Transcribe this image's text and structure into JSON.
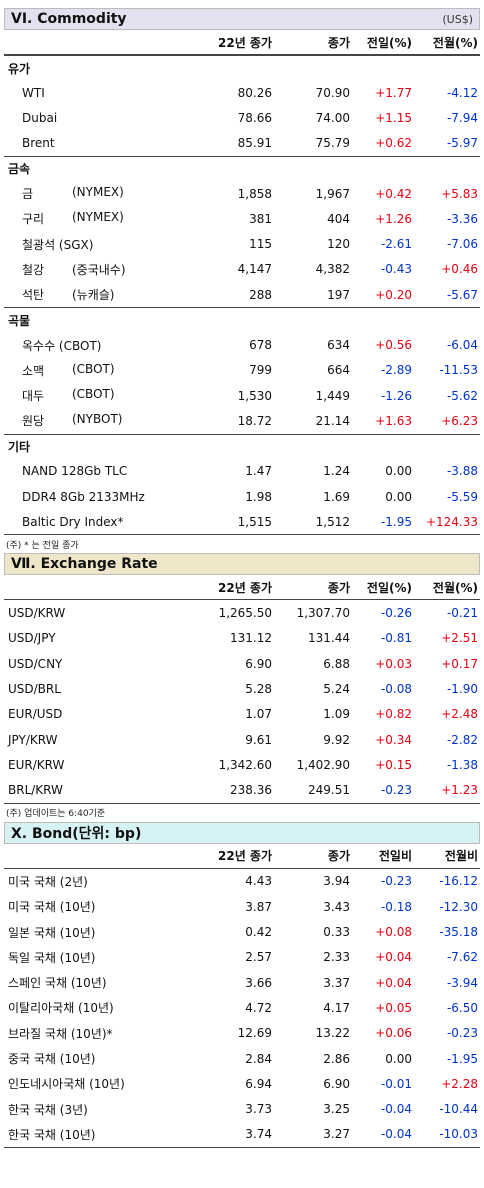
{
  "commodity": {
    "title": "VI. Commodity",
    "unit": "(US$)",
    "columns": [
      "22년 종가",
      "종가",
      "전일(%)",
      "전월(%)"
    ],
    "groups": [
      {
        "label": "유가",
        "rows": [
          {
            "name": "WTI",
            "name2": "",
            "v1": "80.26",
            "v2": "70.90",
            "d1": "+1.77",
            "d2": "-4.12"
          },
          {
            "name": "Dubai",
            "name2": "",
            "v1": "78.66",
            "v2": "74.00",
            "d1": "+1.15",
            "d2": "-7.94"
          },
          {
            "name": "Brent",
            "name2": "",
            "v1": "85.91",
            "v2": "75.79",
            "d1": "+0.62",
            "d2": "-5.97"
          }
        ]
      },
      {
        "label": "금속",
        "rows": [
          {
            "name": "금",
            "name2": "(NYMEX)",
            "v1": "1,858",
            "v2": "1,967",
            "d1": "+0.42",
            "d2": "+5.83"
          },
          {
            "name": "구리",
            "name2": "(NYMEX)",
            "v1": "381",
            "v2": "404",
            "d1": "+1.26",
            "d2": "-3.36"
          },
          {
            "name": "철광석 (SGX)",
            "name2": "",
            "v1": "115",
            "v2": "120",
            "d1": "-2.61",
            "d2": "-7.06"
          },
          {
            "name": "철강",
            "name2": "(중국내수)",
            "v1": "4,147",
            "v2": "4,382",
            "d1": "-0.43",
            "d2": "+0.46"
          },
          {
            "name": "석탄",
            "name2": "(뉴캐슬)",
            "v1": "288",
            "v2": "197",
            "d1": "+0.20",
            "d2": "-5.67"
          }
        ]
      },
      {
        "label": "곡물",
        "rows": [
          {
            "name": "옥수수 (CBOT)",
            "name2": "",
            "v1": "678",
            "v2": "634",
            "d1": "+0.56",
            "d2": "-6.04"
          },
          {
            "name": "소맥",
            "name2": "(CBOT)",
            "v1": "799",
            "v2": "664",
            "d1": "-2.89",
            "d2": "-11.53"
          },
          {
            "name": "대두",
            "name2": "(CBOT)",
            "v1": "1,530",
            "v2": "1,449",
            "d1": "-1.26",
            "d2": "-5.62"
          },
          {
            "name": "원당",
            "name2": "(NYBOT)",
            "v1": "18.72",
            "v2": "21.14",
            "d1": "+1.63",
            "d2": "+6.23"
          }
        ]
      },
      {
        "label": "기타",
        "rows": [
          {
            "name": "NAND 128Gb TLC",
            "name2": "",
            "v1": "1.47",
            "v2": "1.24",
            "d1": "0.00",
            "d2": "-3.88"
          },
          {
            "name": "DDR4 8Gb 2133MHz",
            "name2": "",
            "v1": "1.98",
            "v2": "1.69",
            "d1": "0.00",
            "d2": "-5.59"
          },
          {
            "name": "Baltic Dry Index*",
            "name2": "",
            "v1": "1,515",
            "v2": "1,512",
            "d1": "-1.95",
            "d2": "+124.33"
          }
        ]
      }
    ],
    "note": "(주) * 는 전일 종가"
  },
  "exchange": {
    "title": "Ⅶ. Exchange Rate",
    "columns": [
      "22년 종가",
      "종가",
      "전일(%)",
      "전월(%)"
    ],
    "rows": [
      {
        "name": "USD/KRW",
        "v1": "1,265.50",
        "v2": "1,307.70",
        "d1": "-0.26",
        "d2": "-0.21"
      },
      {
        "name": "USD/JPY",
        "v1": "131.12",
        "v2": "131.44",
        "d1": "-0.81",
        "d2": "+2.51"
      },
      {
        "name": "USD/CNY",
        "v1": "6.90",
        "v2": "6.88",
        "d1": "+0.03",
        "d2": "+0.17"
      },
      {
        "name": "USD/BRL",
        "v1": "5.28",
        "v2": "5.24",
        "d1": "-0.08",
        "d2": "-1.90"
      },
      {
        "name": "EUR/USD",
        "v1": "1.07",
        "v2": "1.09",
        "d1": "+0.82",
        "d2": "+2.48"
      },
      {
        "name": "JPY/KRW",
        "v1": "9.61",
        "v2": "9.92",
        "d1": "+0.34",
        "d2": "-2.82"
      },
      {
        "name": "EUR/KRW",
        "v1": "1,342.60",
        "v2": "1,402.90",
        "d1": "+0.15",
        "d2": "-1.38"
      },
      {
        "name": "BRL/KRW",
        "v1": "238.36",
        "v2": "249.51",
        "d1": "-0.23",
        "d2": "+1.23"
      }
    ],
    "note": "(주) 업데이트는 6:40기준"
  },
  "bond": {
    "title": "X. Bond(단위: bp)",
    "columns": [
      "22년 종가",
      "종가",
      "전일비",
      "전월비"
    ],
    "rows": [
      {
        "name": "미국 국채 (2년)",
        "v1": "4.43",
        "v2": "3.94",
        "d1": "-0.23",
        "d2": "-16.12"
      },
      {
        "name": "미국 국채 (10년)",
        "v1": "3.87",
        "v2": "3.43",
        "d1": "-0.18",
        "d2": "-12.30"
      },
      {
        "name": "일본 국채 (10년)",
        "v1": "0.42",
        "v2": "0.33",
        "d1": "+0.08",
        "d2": "-35.18"
      },
      {
        "name": "독일 국채 (10년)",
        "v1": "2.57",
        "v2": "2.33",
        "d1": "+0.04",
        "d2": "-7.62"
      },
      {
        "name": "스페인 국채 (10년)",
        "v1": "3.66",
        "v2": "3.37",
        "d1": "+0.04",
        "d2": "-3.94"
      },
      {
        "name": "이탈리아국채 (10년)",
        "v1": "4.72",
        "v2": "4.17",
        "d1": "+0.05",
        "d2": "-6.50"
      },
      {
        "name": "브라질 국채 (10년)*",
        "v1": "12.69",
        "v2": "13.22",
        "d1": "+0.06",
        "d2": "-0.23"
      },
      {
        "name": "중국 국채 (10년)",
        "v1": "2.84",
        "v2": "2.86",
        "d1": "0.00",
        "d2": "-1.95"
      },
      {
        "name": "인도네시아국채 (10년)",
        "v1": "6.94",
        "v2": "6.90",
        "d1": "-0.01",
        "d2": "+2.28"
      },
      {
        "name": "한국 국채 (3년)",
        "v1": "3.73",
        "v2": "3.25",
        "d1": "-0.04",
        "d2": "-10.44"
      },
      {
        "name": "한국 국채 (10년)",
        "v1": "3.74",
        "v2": "3.27",
        "d1": "-0.04",
        "d2": "-10.03"
      }
    ]
  },
  "colors": {
    "commodity_header_bg": "#e4e0ef",
    "exchange_header_bg": "#eee6c8",
    "bond_header_bg": "#d7f2f4",
    "positive": "#e60012",
    "negative": "#0033cc"
  }
}
